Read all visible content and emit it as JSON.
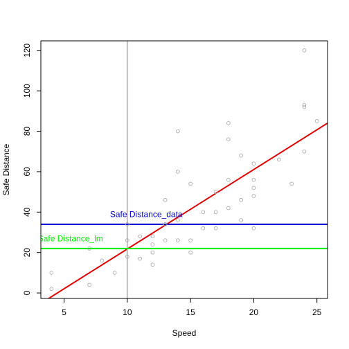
{
  "chart_data": {
    "type": "scatter",
    "xlabel": "Speed",
    "ylabel": "Safe Distance",
    "xlim": [
      3.16,
      25.84
    ],
    "ylim": [
      -2.72,
      124.72
    ],
    "x_ticks": [
      5,
      10,
      15,
      20,
      25
    ],
    "y_ticks": [
      0,
      20,
      40,
      60,
      80,
      100,
      120
    ],
    "points": {
      "color": "#aaaaaa",
      "x": [
        4,
        4,
        7,
        7,
        8,
        9,
        10,
        10,
        10,
        11,
        11,
        12,
        12,
        12,
        12,
        13,
        13,
        13,
        13,
        14,
        14,
        14,
        14,
        15,
        15,
        15,
        16,
        16,
        17,
        17,
        17,
        18,
        18,
        18,
        18,
        19,
        19,
        19,
        20,
        20,
        20,
        20,
        20,
        22,
        23,
        24,
        24,
        24,
        24,
        25
      ],
      "y": [
        2,
        10,
        4,
        22,
        16,
        10,
        18,
        26,
        34,
        17,
        28,
        14,
        20,
        24,
        28,
        26,
        34,
        34,
        46,
        26,
        36,
        60,
        80,
        20,
        26,
        54,
        32,
        40,
        32,
        40,
        50,
        42,
        56,
        76,
        84,
        36,
        46,
        68,
        32,
        48,
        52,
        56,
        64,
        66,
        54,
        70,
        92,
        93,
        120,
        85
      ]
    },
    "lines": [
      {
        "kind": "regression",
        "color": "#dd0000",
        "intercept": -17.579,
        "slope": 3.932
      },
      {
        "kind": "vertical",
        "color": "#bebebe",
        "x": 10
      },
      {
        "kind": "horizontal",
        "color": "#0000cc",
        "y": 34
      },
      {
        "kind": "horizontal",
        "color": "#00ee00",
        "y": 22
      }
    ],
    "annotations": [
      {
        "text": "Safe Distance_data",
        "color": "#0000cc",
        "x": 11.5,
        "y": 37.5
      },
      {
        "text": "Safe Distance_lm",
        "color": "#00ee00",
        "x": 5.5,
        "y": 25.5
      }
    ]
  }
}
